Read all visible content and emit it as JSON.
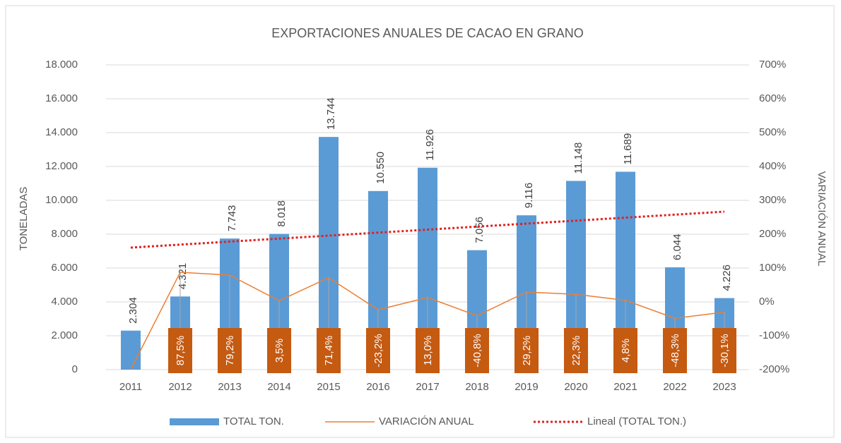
{
  "chart_data": {
    "type": "bar-line",
    "title": "EXPORTACIONES ANUALES DE CACAO EN GRANO",
    "y_label": "TONELADAS",
    "y2_label": "VARIACIÓN ANUAL",
    "categories": [
      "2011",
      "2012",
      "2013",
      "2014",
      "2015",
      "2016",
      "2017",
      "2018",
      "2019",
      "2020",
      "2021",
      "2022",
      "2023"
    ],
    "series": [
      {
        "name": "TOTAL TON.",
        "color": "#5b9bd5",
        "type": "bar",
        "values": [
          2304,
          4321,
          7743,
          8018,
          13744,
          10550,
          11926,
          7056,
          9116,
          11148,
          11689,
          6044,
          4226
        ],
        "value_labels": [
          "2.304",
          "4.321",
          "7.743",
          "8.018",
          "13.744",
          "10.550",
          "11.926",
          "7.056",
          "9.116",
          "11.148",
          "11.689",
          "6.044",
          "4.226"
        ]
      },
      {
        "name": "VARIACIÓN ANUAL",
        "color": "#ed7d31",
        "type": "line",
        "axis": "y2",
        "values": [
          -200,
          87.5,
          79.2,
          3.5,
          71.4,
          -23.2,
          13.0,
          -40.8,
          29.2,
          22.3,
          4.8,
          -48.3,
          -30.1
        ],
        "value_labels": [
          null,
          "87,5%",
          "79,2%",
          "3,5%",
          "71,4%",
          "-23,2%",
          "13,0%",
          "-40,8%",
          "29,2%",
          "22,3%",
          "4,8%",
          "-48,3%",
          "-30,1%"
        ],
        "label_color": "#c55a11"
      },
      {
        "name": "Lineal (TOTAL TON.)",
        "color": "#e02020",
        "type": "trend",
        "values": [
          7208,
          7385,
          7562,
          7739,
          7916,
          8093,
          8270,
          8447,
          8624,
          8801,
          8978,
          9155,
          9332
        ]
      }
    ],
    "ylim": [
      0,
      18000
    ],
    "yticks": [
      0,
      {
        "value": 2000,
        "label": "2.000"
      },
      {
        "value": 4000,
        "label": "4.000"
      },
      {
        "value": 6000,
        "label": "6.000"
      },
      {
        "value": 8000,
        "label": "8.000"
      },
      {
        "value": 10000,
        "label": "10.000"
      },
      {
        "value": 12000,
        "label": "12.000"
      },
      {
        "value": 14000,
        "label": "14.000"
      },
      {
        "value": 16000,
        "label": "16.000"
      },
      {
        "value": 18000,
        "label": "18.000"
      }
    ],
    "y2lim": [
      -200,
      700
    ],
    "y2ticks": [
      {
        "value": -200,
        "label": "-200%"
      },
      {
        "value": -100,
        "label": "-100%"
      },
      {
        "value": 0,
        "label": "0%"
      },
      {
        "value": 100,
        "label": "100%"
      },
      {
        "value": 200,
        "label": "200%"
      },
      {
        "value": 300,
        "label": "300%"
      },
      {
        "value": 400,
        "label": "400%"
      },
      {
        "value": 500,
        "label": "500%"
      },
      {
        "value": 600,
        "label": "600%"
      },
      {
        "value": 700,
        "label": "700%"
      }
    ],
    "grid": true
  }
}
